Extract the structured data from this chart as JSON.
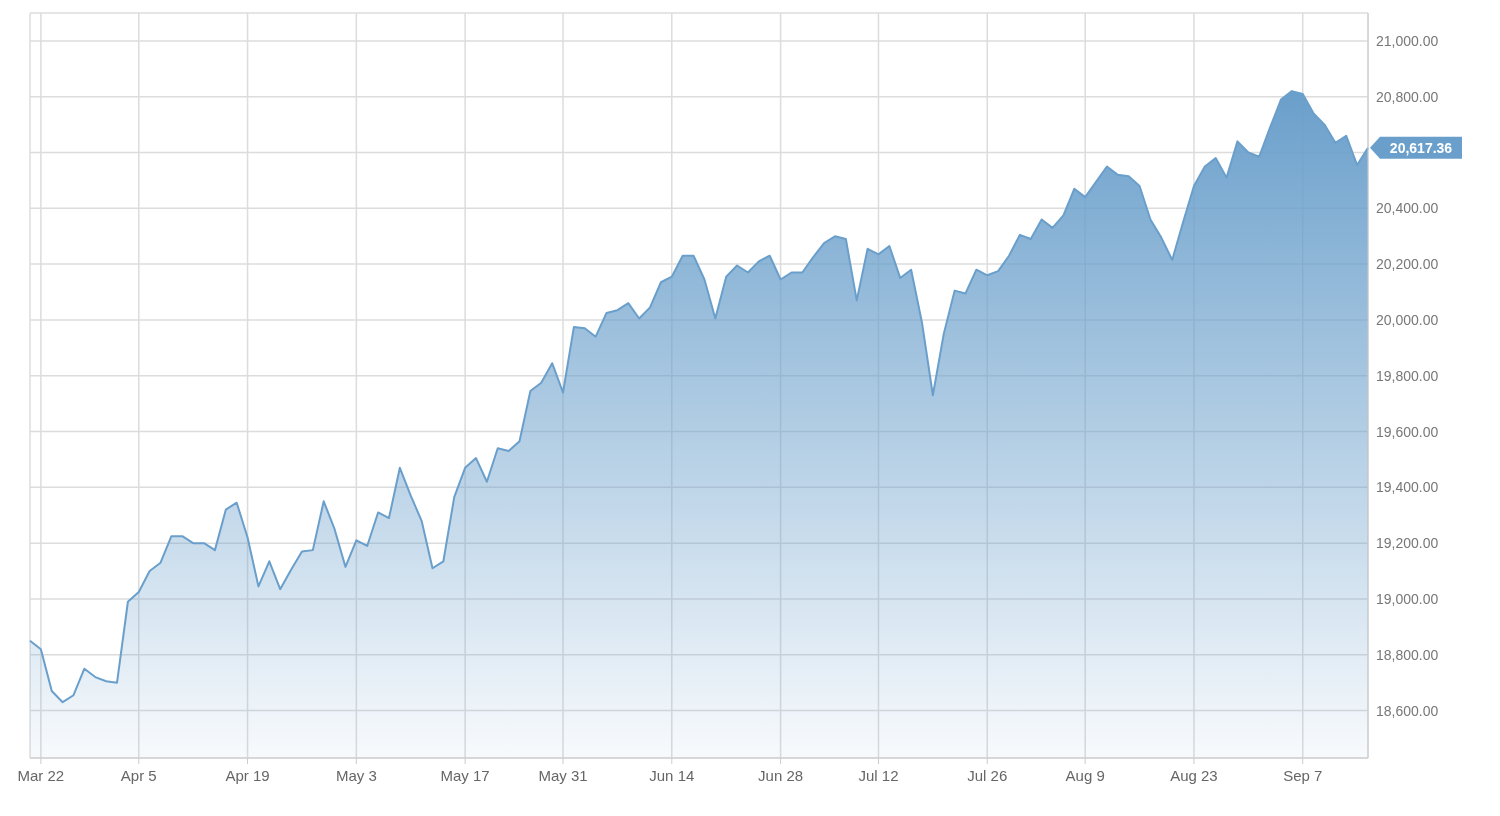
{
  "chart_data": {
    "type": "area",
    "categories": [
      null,
      "Mar 22",
      null,
      null,
      null,
      null,
      null,
      null,
      null,
      null,
      "Apr 5",
      null,
      null,
      null,
      null,
      null,
      null,
      null,
      null,
      null,
      "Apr 19",
      null,
      null,
      null,
      null,
      null,
      null,
      null,
      null,
      null,
      "May 3",
      null,
      null,
      null,
      null,
      null,
      null,
      null,
      null,
      null,
      "May 17",
      null,
      null,
      null,
      null,
      null,
      null,
      null,
      null,
      "May 31",
      null,
      null,
      null,
      null,
      null,
      null,
      null,
      null,
      null,
      "Jun 14",
      null,
      null,
      null,
      null,
      null,
      null,
      null,
      null,
      null,
      "Jun 28",
      null,
      null,
      null,
      null,
      null,
      null,
      null,
      null,
      "Jul 12",
      null,
      null,
      null,
      null,
      null,
      null,
      null,
      null,
      null,
      "Jul 26",
      null,
      null,
      null,
      null,
      null,
      null,
      null,
      null,
      "Aug 9",
      null,
      null,
      null,
      null,
      null,
      null,
      null,
      null,
      null,
      "Aug 23",
      null,
      null,
      null,
      null,
      null,
      null,
      null,
      null,
      null,
      "Sep 7",
      null,
      null,
      null,
      null,
      null,
      null
    ],
    "series": [
      {
        "color": "#6a9fcb",
        "values": [
          18850,
          18820,
          18670,
          18630,
          18655,
          18750,
          18720,
          18705,
          18700,
          18990,
          19025,
          19100,
          19130,
          19225,
          19225,
          19200,
          19200,
          19175,
          19320,
          19345,
          19220,
          19045,
          19135,
          19035,
          19105,
          19170,
          19175,
          19350,
          19250,
          19115,
          19210,
          19190,
          19310,
          19290,
          19470,
          19370,
          19280,
          19110,
          19135,
          19365,
          19470,
          19505,
          19420,
          19540,
          19530,
          19565,
          19745,
          19775,
          19845,
          19740,
          19975,
          19970,
          19940,
          20025,
          20035,
          20060,
          20005,
          20045,
          20135,
          20155,
          20230,
          20230,
          20145,
          20005,
          20155,
          20195,
          20170,
          20210,
          20230,
          20145,
          20170,
          20170,
          20225,
          20275,
          20300,
          20290,
          20070,
          20255,
          20235,
          20265,
          20150,
          20180,
          19990,
          19730,
          19950,
          20105,
          20095,
          20180,
          20160,
          20175,
          20230,
          20305,
          20290,
          20360,
          20330,
          20375,
          20470,
          20440,
          20495,
          20550,
          20520,
          20515,
          20480,
          20360,
          20295,
          20215,
          20350,
          20480,
          20550,
          20580,
          20510,
          20640,
          20600,
          20585,
          20690,
          20790,
          20820,
          20810,
          20740,
          20700,
          20635,
          20660,
          20555,
          20617.36
        ]
      }
    ],
    "ylim": [
      18430,
      21100
    ],
    "yticks": [
      {
        "value": 18600,
        "label": "18,600.00"
      },
      {
        "value": 18800,
        "label": "18,800.00"
      },
      {
        "value": 19000,
        "label": "19,000.00"
      },
      {
        "value": 19200,
        "label": "19,200.00"
      },
      {
        "value": 19400,
        "label": "19,400.00"
      },
      {
        "value": 19600,
        "label": "19,600.00"
      },
      {
        "value": 19800,
        "label": "19,800.00"
      },
      {
        "value": 20000,
        "label": "20,000.00"
      },
      {
        "value": 20200,
        "label": "20,200.00"
      },
      {
        "value": 20400,
        "label": "20,400.00"
      },
      {
        "value": 20600,
        "label": null
      },
      {
        "value": 20800,
        "label": "20,800.00"
      },
      {
        "value": 21000,
        "label": "21,000.00"
      }
    ],
    "grid": true,
    "annotations": [
      "20,617.36"
    ]
  }
}
